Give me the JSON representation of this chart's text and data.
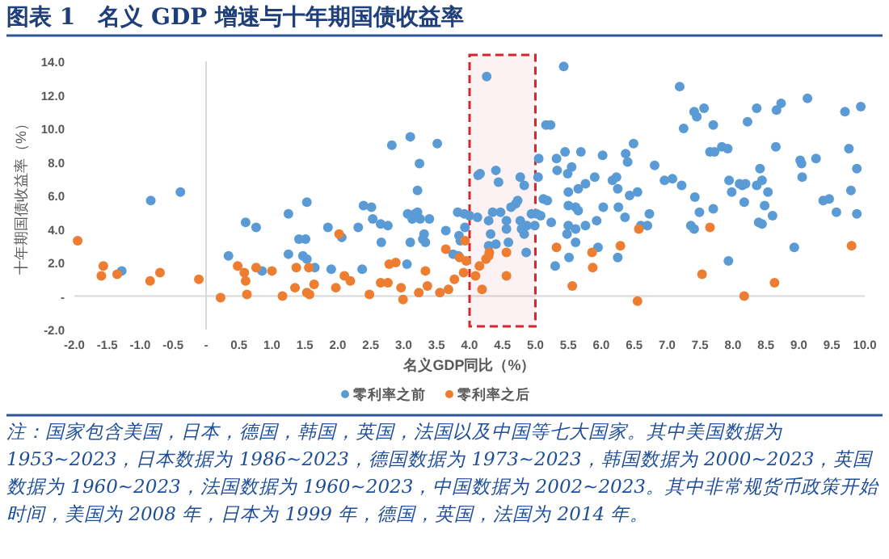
{
  "chart_data": {
    "type": "scatter",
    "title": "图表 1　名义 GDP 增速与十年期国债收益率",
    "xlabel": "名义GDP同比（%）",
    "ylabel": "十年期国债收益率（%）",
    "annotations": [
      "注：国家包含美国，日本，德国，韩国，英国，法国以及中国等七大国家。其中美国数据为 1953~2023，日本数据为 1986~2023，德国数据为 1973~2023，韩国数据为 2000~2023，英国数据为 1960~2023，法国数据为 1960~2023，中国数据为 2002~2023。其中非常规货币政策开始时间，美国为 2008 年，日本为 1999 年，德国，英国，法国为 2014 年。"
    ],
    "xlim": [
      -2,
      10
    ],
    "ylim": [
      -2,
      14
    ],
    "xticks": [
      {
        "value": -2,
        "label": "-2.0"
      },
      {
        "value": -1.5,
        "label": "-1.5"
      },
      {
        "value": -1,
        "label": "-1.0"
      },
      {
        "value": -0.5,
        "label": "-0.5"
      },
      {
        "value": 0,
        "label": "-"
      },
      {
        "value": 0.5,
        "label": "0.5"
      },
      {
        "value": 1,
        "label": "1.0"
      },
      {
        "value": 1.5,
        "label": "1.5"
      },
      {
        "value": 2,
        "label": "2.0"
      },
      {
        "value": 2.5,
        "label": "2.5"
      },
      {
        "value": 3,
        "label": "3.0"
      },
      {
        "value": 3.5,
        "label": "3.5"
      },
      {
        "value": 4,
        "label": "4.0"
      },
      {
        "value": 4.5,
        "label": "4.5"
      },
      {
        "value": 5,
        "label": "5.0"
      },
      {
        "value": 5.5,
        "label": "5.5"
      },
      {
        "value": 6,
        "label": "6.0"
      },
      {
        "value": 6.5,
        "label": "6.5"
      },
      {
        "value": 7,
        "label": "7.0"
      },
      {
        "value": 7.5,
        "label": "7.5"
      },
      {
        "value": 8,
        "label": "8.0"
      },
      {
        "value": 8.5,
        "label": "8.5"
      },
      {
        "value": 9,
        "label": "9.0"
      },
      {
        "value": 9.5,
        "label": "9.5"
      },
      {
        "value": 10,
        "label": "10.0"
      }
    ],
    "yticks": [
      {
        "value": -2,
        "label": "-2.0"
      },
      {
        "value": 0,
        "label": "-"
      },
      {
        "value": 2,
        "label": "2.0"
      },
      {
        "value": 4,
        "label": "4.0"
      },
      {
        "value": 6,
        "label": "6.0"
      },
      {
        "value": 8,
        "label": "8.0"
      },
      {
        "value": 10,
        "label": "10.0"
      },
      {
        "value": 12,
        "label": "12.0"
      },
      {
        "value": 14,
        "label": "14.0"
      }
    ],
    "bands": [
      {
        "axis": "x",
        "from": 4,
        "to": 5,
        "color": "#d9262b"
      }
    ],
    "legend": "bottom",
    "marker": "circle",
    "series": [
      {
        "name": "零利率之前",
        "color": "#5b9bd5",
        "x": [
          -0.84,
          -0.39,
          0.6,
          0.76,
          1.25,
          0.34,
          0.85,
          -1.28,
          1.25,
          1.53,
          1.41,
          1.51,
          1.47,
          1.53,
          1.65,
          1.85,
          1.9,
          2.06,
          2.31,
          2.39,
          2.51,
          2.53,
          2.37,
          2.65,
          2.76,
          2.66,
          2.82,
          3.1,
          3.51,
          3.24,
          3.21,
          3.06,
          3.17,
          3.13,
          3.21,
          3.25,
          3.39,
          3.31,
          3.33,
          3.29,
          3.1,
          3.05,
          3.64,
          3.75,
          3.82,
          3.92,
          3.84,
          3.86,
          3.93,
          4.13,
          3.83,
          4.26,
          5.43,
          5.16,
          5.23,
          4.16,
          4.4,
          4.44,
          4.77,
          4.83,
          5.05,
          5.04,
          4.12,
          4.0,
          4.35,
          4.29,
          4.47,
          4.56,
          4.63,
          4.7,
          4.73,
          4.77,
          4.79,
          4.87,
          4.83,
          4.32,
          4.4,
          4.29,
          4.56,
          4.59,
          4.86,
          4.94,
          4.99,
          5.02,
          5.08,
          5.12,
          5.18,
          5.24,
          5.32,
          5.33,
          5.45,
          5.55,
          5.49,
          5.5,
          5.69,
          5.65,
          5.76,
          5.9,
          6.02,
          6.17,
          6.23,
          6.25,
          6.37,
          6.4,
          6.49,
          6.43,
          6.55,
          5.5,
          5.61,
          5.65,
          5.5,
          5.76,
          5.61,
          5.48,
          5.61,
          5.93,
          6.03,
          6.26,
          6.36,
          6.81,
          6.96,
          7.08,
          6.6,
          6.7,
          6.73,
          5.3,
          5.51,
          5.95,
          6.25,
          7.19,
          7.25,
          7.41,
          7.45,
          7.56,
          7.7,
          7.65,
          7.72,
          7.83,
          7.92,
          8.22,
          8.36,
          8.66,
          8.73,
          9.13,
          9.7,
          9.94,
          8.65,
          9.76,
          7.22,
          7.42,
          7.49,
          7.7,
          7.36,
          7.41,
          7.94,
          7.98,
          8.1,
          8.14,
          8.19,
          8.17,
          8.36,
          8.41,
          8.44,
          8.53,
          8.48,
          8.39,
          8.44,
          8.6,
          9.02,
          9.04,
          9.05,
          9.26,
          9.37,
          9.46,
          9.57,
          9.79,
          9.88,
          9.88,
          8.93,
          7.93
        ],
        "values": [
          5.7,
          6.2,
          4.4,
          4.1,
          4.9,
          2.4,
          1.5,
          1.5,
          2.5,
          5.6,
          3.4,
          3.4,
          2.4,
          2.2,
          1.7,
          4.1,
          1.6,
          3.5,
          4.1,
          5.4,
          5.3,
          4.6,
          1.6,
          4.3,
          4.2,
          3.2,
          9.0,
          9.5,
          9.1,
          7.9,
          6.3,
          4.9,
          4.9,
          4.6,
          5.0,
          4.6,
          4.6,
          3.7,
          3.2,
          3.4,
          3.2,
          1.9,
          3.9,
          2.5,
          5.0,
          4.9,
          3.6,
          3.3,
          4.1,
          7.2,
          2.4,
          13.1,
          13.7,
          10.2,
          10.2,
          7.3,
          7.5,
          6.8,
          7.1,
          6.6,
          8.2,
          7.1,
          4.7,
          4.8,
          5.0,
          4.5,
          5.0,
          4.5,
          5.3,
          5.5,
          5.7,
          4.5,
          4.0,
          4.2,
          3.7,
          3.7,
          3.1,
          3.0,
          4.0,
          3.2,
          2.6,
          4.9,
          4.2,
          4.9,
          4.8,
          5.8,
          5.7,
          4.4,
          8.2,
          7.5,
          8.6,
          7.7,
          7.3,
          6.2,
          8.6,
          6.4,
          6.7,
          7.1,
          8.4,
          6.9,
          7.1,
          6.4,
          8.5,
          8.0,
          9.1,
          6.0,
          6.2,
          5.4,
          5.3,
          5.1,
          4.2,
          4.2,
          4.0,
          3.7,
          3.2,
          4.5,
          5.3,
          5.3,
          4.7,
          7.8,
          6.9,
          7.0,
          4.2,
          4.2,
          4.9,
          1.8,
          2.3,
          2.9,
          2.3,
          12.5,
          10.0,
          11.0,
          10.7,
          11.2,
          10.2,
          8.6,
          8.6,
          8.9,
          8.8,
          10.4,
          11.2,
          11.1,
          11.5,
          11.8,
          11.0,
          11.3,
          8.9,
          8.8,
          6.6,
          5.9,
          5.0,
          5.2,
          4.2,
          4.0,
          6.9,
          6.2,
          6.7,
          6.6,
          6.7,
          5.6,
          6.6,
          7.6,
          6.9,
          6.2,
          5.4,
          4.4,
          4.3,
          4.8,
          8.1,
          7.9,
          7.1,
          8.2,
          5.7,
          5.8,
          5.0,
          6.3,
          7.6,
          4.9,
          2.9,
          2.1
        ]
      },
      {
        "name": "零利率之后",
        "color": "#ed7d31",
        "x": [
          -1.95,
          -1.56,
          -1.59,
          -1.35,
          -0.85,
          -0.7,
          -0.11,
          0.22,
          0.48,
          0.58,
          0.6,
          0.62,
          0.76,
          1.0,
          1.16,
          1.37,
          1.35,
          1.56,
          1.53,
          1.57,
          1.64,
          1.97,
          2.02,
          2.1,
          2.19,
          2.48,
          2.65,
          2.76,
          2.78,
          2.88,
          2.96,
          2.99,
          3.23,
          3.33,
          3.36,
          3.55,
          3.64,
          3.68,
          3.77,
          3.85,
          3.91,
          3.95,
          3.93,
          4.09,
          4.15,
          4.19,
          4.25,
          4.29,
          4.3,
          4.56,
          4.56,
          5.32,
          5.86,
          5.87,
          5.56,
          6.29,
          6.55,
          6.57,
          7.65,
          7.53,
          8.17,
          8.63,
          9.8
        ],
        "values": [
          3.3,
          1.8,
          1.2,
          1.3,
          0.9,
          1.4,
          1.0,
          -0.1,
          1.8,
          1.4,
          0.9,
          0.1,
          1.7,
          1.5,
          0.0,
          1.7,
          0.5,
          1.7,
          0.2,
          0.1,
          0.7,
          0.5,
          3.7,
          1.2,
          0.9,
          0.1,
          0.8,
          0.8,
          1.9,
          2.0,
          0.5,
          -0.2,
          0.2,
          1.5,
          0.6,
          0.2,
          2.8,
          0.4,
          1.0,
          2.3,
          1.4,
          2.1,
          3.3,
          1.2,
          1.8,
          0.4,
          2.2,
          2.4,
          2.6,
          2.6,
          1.2,
          2.9,
          2.6,
          1.7,
          0.6,
          3.0,
          -0.3,
          4.0,
          4.1,
          1.3,
          0.0,
          0.8,
          3.0
        ]
      }
    ]
  }
}
